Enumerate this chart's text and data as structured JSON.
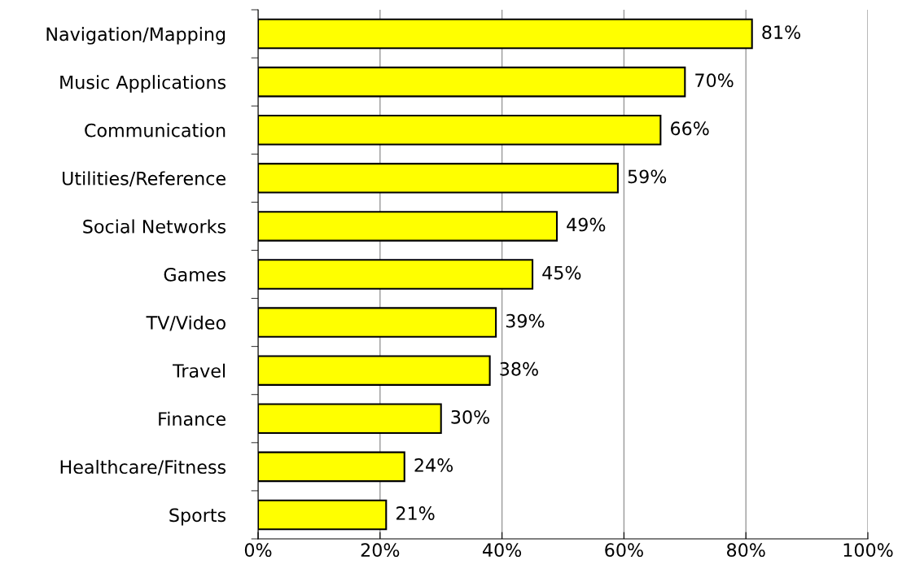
{
  "chart_data": {
    "type": "bar",
    "orientation": "horizontal",
    "categories": [
      "Navigation/Mapping",
      "Music Applications",
      "Communication",
      "Utilities/Reference",
      "Social Networks",
      "Games",
      "TV/Video",
      "Travel",
      "Finance",
      "Healthcare/Fitness",
      "Sports"
    ],
    "values": [
      81,
      70,
      66,
      59,
      49,
      45,
      39,
      38,
      30,
      24,
      21
    ],
    "value_labels": [
      "81%",
      "70%",
      "66%",
      "59%",
      "49%",
      "45%",
      "39%",
      "38%",
      "30%",
      "24%",
      "21%"
    ],
    "color": "#ffff00",
    "xlim": [
      0,
      100
    ],
    "xticks": [
      {
        "value": 0,
        "label": "0%"
      },
      {
        "value": 20,
        "label": "20%"
      },
      {
        "value": 40,
        "label": "40%"
      },
      {
        "value": 60,
        "label": "60%"
      },
      {
        "value": 80,
        "label": "80%"
      },
      {
        "value": 100,
        "label": "100%"
      }
    ],
    "grid": "x"
  }
}
